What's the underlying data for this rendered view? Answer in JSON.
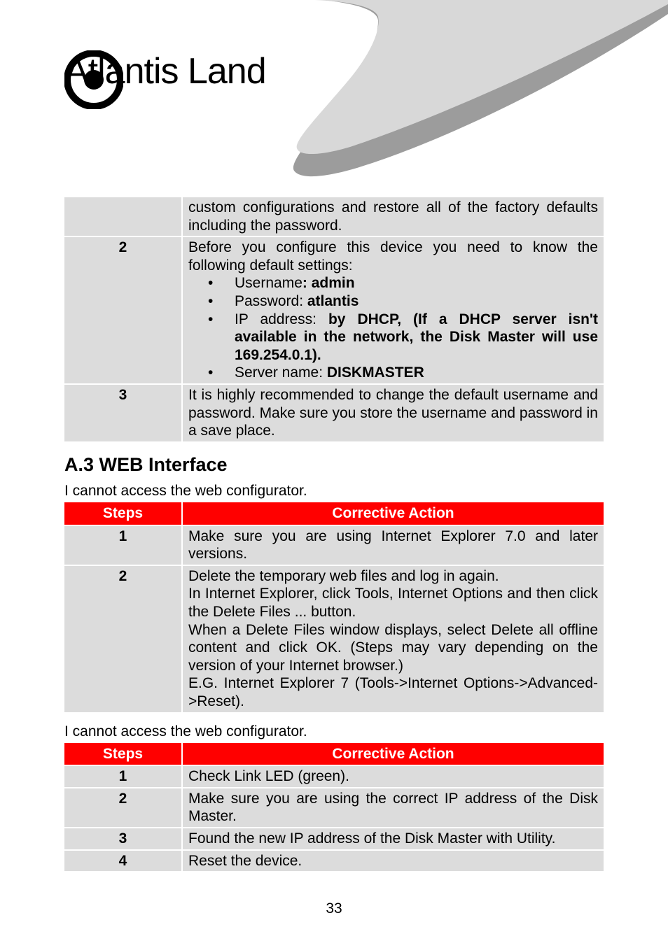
{
  "brand": {
    "name": "Atlantis Land"
  },
  "table1": {
    "rows": [
      {
        "step": "",
        "body_html": "custom configurations and restore all of the factory defaults including the password."
      },
      {
        "step": "2",
        "body_html": "Before you configure this device you need to know the following default settings:<ul class=\"bul\"><li data-name=\"list-item\" data-interactable=\"false\">Username<b>: admin</b></li><li data-name=\"list-item\" data-interactable=\"false\">Password: <b>atlantis</b></li><li data-name=\"list-item\" data-interactable=\"false\">IP address: <b>by DHCP, (If a DHCP server isn't available in the network, the Disk Master will use 169.254.0.1).</b></li><li data-name=\"list-item\" data-interactable=\"false\">Server name: <b>DISKMASTER</b></li></ul>"
      },
      {
        "step": "3",
        "body_html": "It is highly recommended to change the default username and password. Make sure you store the username and password in a save place."
      }
    ]
  },
  "section_a3": {
    "title": "A.3 WEB Interface"
  },
  "lead1": "I cannot access the web configurator.",
  "table2": {
    "header": {
      "col1": "Steps",
      "col2": "Corrective Action"
    },
    "rows": [
      {
        "step": "1",
        "body_html": "Make sure you are using Internet Explorer 7.0 and later versions."
      },
      {
        "step": "2",
        "body_html": "Delete the temporary web files and log in again.<br>In Internet Explorer, click Tools, Internet Options and then click the Delete Files ... button.<br>When a Delete Files window displays, select Delete all offline content and click OK. (Steps may vary depending on the version of your Internet browser.)<br>E.G. Internet Explorer 7 (Tools-&gt;Internet Options-&gt;Advanced-&gt;Reset)."
      }
    ]
  },
  "lead2": "I cannot access the web configurator.",
  "table3": {
    "header": {
      "col1": "Steps",
      "col2": "Corrective Action"
    },
    "rows": [
      {
        "step": "1",
        "body_html": "Check Link LED  (green)."
      },
      {
        "step": "2",
        "body_html": "Make sure you are using the correct IP address of the Disk Master."
      },
      {
        "step": "3",
        "body_html": "Found the new  IP address of the Disk Master with Utility."
      },
      {
        "step": "4",
        "body_html": "Reset the device."
      }
    ]
  },
  "page_number": "33",
  "style": {
    "header_swoosh_dark": "#9c9c9c",
    "header_swoosh_light": "#d8d8d8",
    "table_bg": "#dcdcdc",
    "header_red": "#ff0000",
    "text_color": "#000000",
    "page_bg": "#ffffff"
  }
}
